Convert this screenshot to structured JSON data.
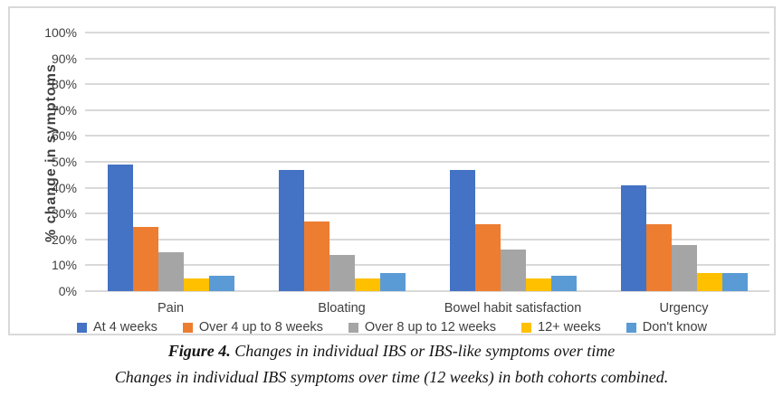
{
  "caption": {
    "label": "Figure 4.",
    "title": " Changes in individual IBS or IBS-like symptoms over time",
    "subtitle": "Changes in individual IBS symptoms over time (12 weeks) in both cohorts combined."
  },
  "chart_data": {
    "type": "bar",
    "title": "",
    "xlabel": "",
    "ylabel": "% change in symptoms",
    "ylim": [
      0,
      100
    ],
    "ytick_step": 10,
    "ytick_labels": [
      "0%",
      "10%",
      "20%",
      "30%",
      "40%",
      "50%",
      "60%",
      "70%",
      "80%",
      "90%",
      "100%"
    ],
    "grid": true,
    "legend_position": "bottom",
    "categories": [
      "Pain",
      "Bloating",
      "Bowel habit satisfaction",
      "Urgency"
    ],
    "series": [
      {
        "name": "At 4 weeks",
        "color": "#4472C4",
        "values": [
          49,
          47,
          47,
          41
        ]
      },
      {
        "name": "Over 4 up to 8 weeks",
        "color": "#ED7D31",
        "values": [
          25,
          27,
          26,
          26
        ]
      },
      {
        "name": "Over 8 up to 12 weeks",
        "color": "#A5A5A5",
        "values": [
          15,
          14,
          16,
          18
        ]
      },
      {
        "name": "12+ weeks",
        "color": "#FFC000",
        "values": [
          5,
          5,
          5,
          7
        ]
      },
      {
        "name": "Don't know",
        "color": "#5B9BD5",
        "values": [
          6,
          7,
          6,
          7
        ]
      }
    ]
  }
}
